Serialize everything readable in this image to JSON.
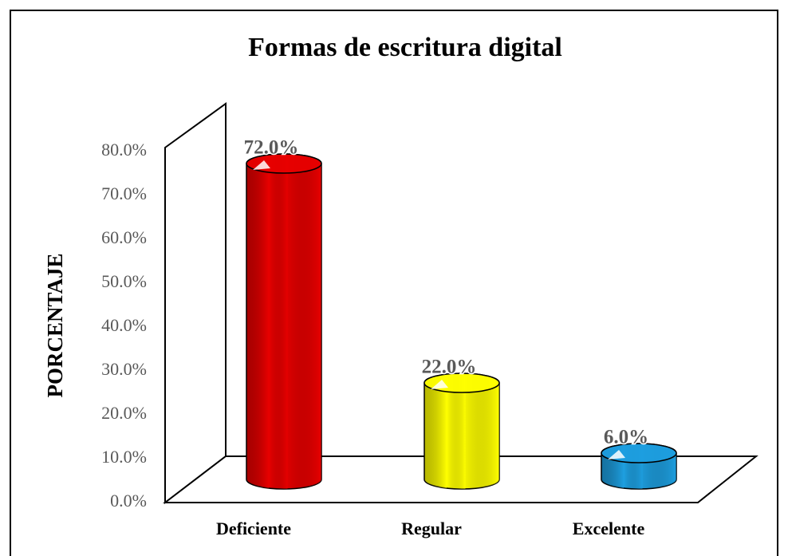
{
  "chart_data": {
    "type": "bar3d",
    "title": "Formas de escritura digital",
    "y_label": "PORCENTAJE",
    "categories": [
      "Deficiente",
      "Regular",
      "Excelente"
    ],
    "values": [
      72,
      22,
      6
    ],
    "value_labels": [
      "72.0%",
      "22.0%",
      "6.0%"
    ],
    "colors": [
      "#e80000",
      "#ffff00",
      "#1e9fe0"
    ],
    "ylim": [
      0,
      80
    ],
    "yticks": [
      {
        "value": 0,
        "label": "0.0%"
      },
      {
        "value": 10,
        "label": "10.0%"
      },
      {
        "value": 20,
        "label": "20.0%"
      },
      {
        "value": 30,
        "label": "30.0%"
      },
      {
        "value": 40,
        "label": "40.0%"
      },
      {
        "value": 50,
        "label": "50.0%"
      },
      {
        "value": 60,
        "label": "60.0%"
      },
      {
        "value": 70,
        "label": "70.0%"
      },
      {
        "value": 80,
        "label": "80.0%"
      }
    ]
  }
}
